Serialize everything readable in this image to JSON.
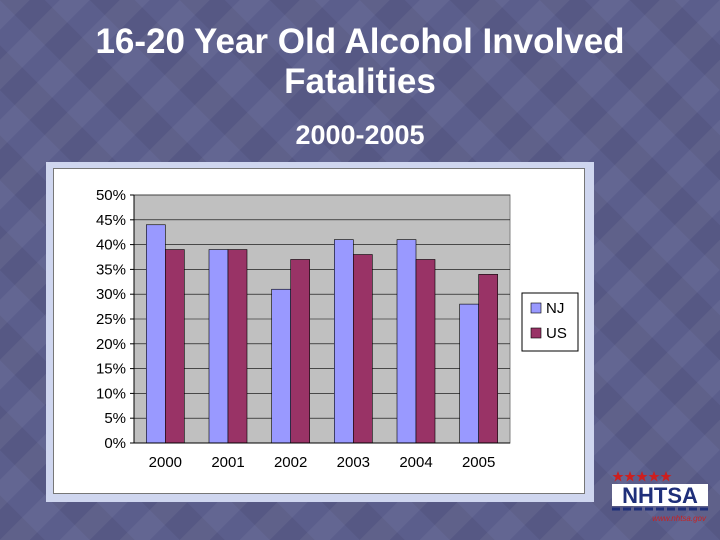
{
  "slide": {
    "title_line1": "16-20 Year Old Alcohol Involved",
    "title_line2": "Fatalities",
    "subtitle": "2000-2005"
  },
  "logo": {
    "text": "NHTSA",
    "tagline": "www.nhtsa.gov"
  },
  "colors": {
    "nj": "#9999ff",
    "us": "#993366",
    "plot_bg": "#c0c0c0"
  },
  "chart_data": {
    "type": "bar",
    "title": "",
    "xlabel": "",
    "ylabel": "",
    "categories": [
      "2000",
      "2001",
      "2002",
      "2003",
      "2004",
      "2005"
    ],
    "series": [
      {
        "name": "NJ",
        "values": [
          44,
          39,
          31,
          41,
          41,
          28
        ]
      },
      {
        "name": "US",
        "values": [
          39,
          39,
          37,
          38,
          37,
          34
        ]
      }
    ],
    "ylim": [
      0,
      50
    ],
    "yticks": [
      "0%",
      "5%",
      "10%",
      "15%",
      "20%",
      "25%",
      "30%",
      "35%",
      "40%",
      "45%",
      "50%"
    ],
    "legend": "right",
    "grid": true
  }
}
